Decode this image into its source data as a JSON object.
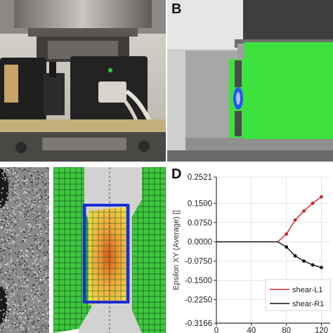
{
  "figure": {
    "panel_labels": {
      "b": "B",
      "d": "D"
    }
  },
  "chart_data": {
    "type": "line",
    "ylabel": "Epsilon XY (Average) []",
    "yticks": [
      "0.2521",
      "0.1500",
      "0.0750",
      "0.0000",
      "-0.0750",
      "-0.1500",
      "-0.2250",
      "-0.3166"
    ],
    "ylim": [
      -0.3166,
      0.2521
    ],
    "xticks": [
      "0",
      "40",
      "80",
      "120"
    ],
    "xlim": [
      0,
      130
    ],
    "grid": true,
    "legend_position": "bottom-right",
    "series": [
      {
        "name": "shear-L1",
        "color": "#c62828",
        "x": [
          0,
          20,
          40,
          60,
          70,
          80,
          90,
          100,
          110,
          120
        ],
        "y": [
          0,
          0,
          0,
          0,
          0,
          0.03,
          0.085,
          0.12,
          0.15,
          0.175
        ]
      },
      {
        "name": "shear-R1",
        "color": "#111111",
        "x": [
          0,
          20,
          40,
          60,
          70,
          80,
          90,
          100,
          110,
          120
        ],
        "y": [
          0,
          0,
          0,
          0,
          0,
          -0.02,
          -0.055,
          -0.075,
          -0.09,
          -0.1
        ]
      }
    ]
  }
}
